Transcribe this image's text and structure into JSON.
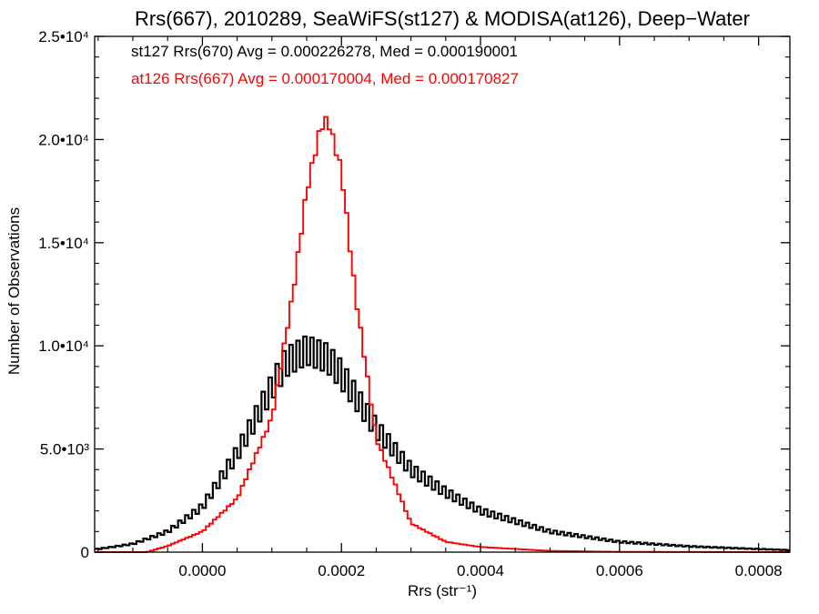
{
  "chart_data": {
    "type": "histogram",
    "title": "Rrs(667), 2010289, SeaWiFS(st127) & MODISA(at126), Deep−Water",
    "xlabel": "Rrs (str⁻¹)",
    "ylabel": "Number of Observations",
    "xlim": [
      -0.000155,
      0.000845
    ],
    "ylim": [
      0,
      25000
    ],
    "x_ticks": [
      {
        "value": 0.0,
        "label": "0.0000"
      },
      {
        "value": 0.0002,
        "label": "0.0002"
      },
      {
        "value": 0.0004,
        "label": "0.0004"
      },
      {
        "value": 0.0006,
        "label": "0.0006"
      },
      {
        "value": 0.0008,
        "label": "0.0008"
      }
    ],
    "y_ticks": [
      {
        "value": 0,
        "label": "0"
      },
      {
        "value": 5000,
        "label": "5.0•10³"
      },
      {
        "value": 10000,
        "label": "1.0•10⁴"
      },
      {
        "value": 15000,
        "label": "1.5•10⁴"
      },
      {
        "value": 20000,
        "label": "2.0•10⁴"
      },
      {
        "value": 25000,
        "label": "2.5•10⁴"
      }
    ],
    "grid": false,
    "annotations": [
      {
        "text": "st127 Rrs(670) Avg = 0.000226278, Med = 0.000190001",
        "color": "#000000"
      },
      {
        "text": "at126 Rrs(667) Avg = 0.000170004, Med = 0.000170827",
        "color": "#ff0000"
      }
    ],
    "series": [
      {
        "color": "#000000",
        "x": [
          -0.00015,
          -0.0001,
          -5e-05,
          0.0,
          5e-05,
          0.0001,
          0.00012,
          0.00015,
          0.00018,
          0.0002,
          0.00025,
          0.0003,
          0.00035,
          0.0004,
          0.0005,
          0.0006,
          0.0007,
          0.0008,
          0.000845
        ],
        "y": [
          150,
          400,
          1000,
          2200,
          4800,
          8000,
          9200,
          9800,
          9400,
          8600,
          6000,
          4000,
          2900,
          2000,
          1000,
          500,
          280,
          150,
          100
        ]
      },
      {
        "color": "#ff0000",
        "x": [
          -0.00015,
          -8e-05,
          -5e-05,
          0.0,
          5e-05,
          0.0001,
          0.00013,
          0.00015,
          0.00017,
          0.00018,
          0.0002,
          0.00022,
          0.00025,
          0.0003,
          0.00035,
          0.0004,
          0.0005,
          0.0006,
          0.0008,
          0.000845
        ],
        "y": [
          0,
          0,
          300,
          1000,
          2600,
          6500,
          12500,
          17500,
          20600,
          21000,
          18500,
          12500,
          5500,
          1400,
          500,
          250,
          60,
          15,
          0,
          0
        ]
      }
    ]
  }
}
